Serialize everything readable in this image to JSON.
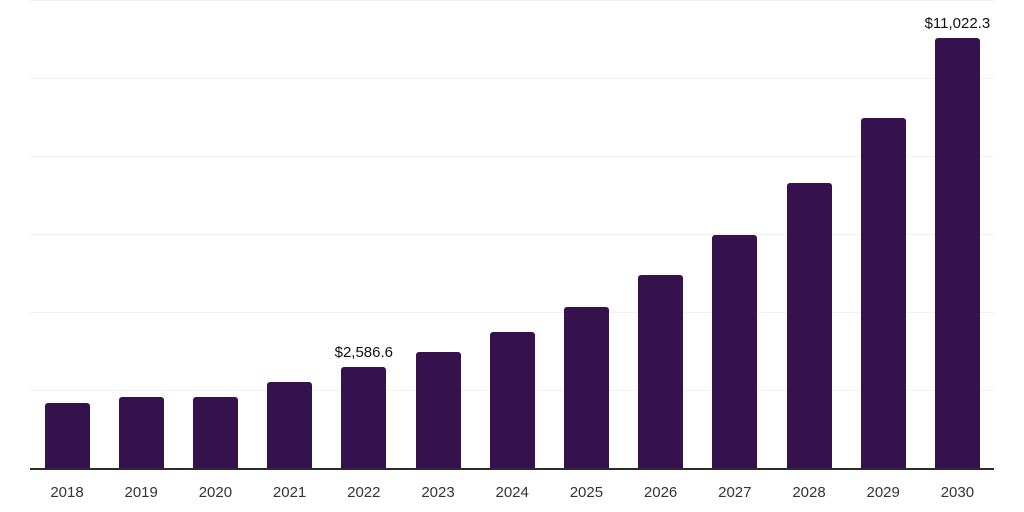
{
  "chart_data": {
    "type": "bar",
    "title": "",
    "xlabel": "",
    "ylabel": "",
    "categories": [
      "2018",
      "2019",
      "2020",
      "2021",
      "2022",
      "2023",
      "2024",
      "2025",
      "2026",
      "2027",
      "2028",
      "2029",
      "2030"
    ],
    "values": [
      1665,
      1820,
      1810,
      2205,
      2586.6,
      2975,
      3485,
      4130,
      4950,
      5975,
      7310,
      8975,
      11022.3
    ],
    "value_labels": [
      "",
      "",
      "",
      "",
      "$2,586.6",
      "",
      "",
      "",
      "",
      "",
      "",
      "",
      "$11,022.3"
    ],
    "ylim": [
      0,
      12000
    ],
    "gridline_interval": 2000,
    "grid": "horizontal",
    "legend": "none",
    "y_tick_labels_visible": false
  },
  "colors": {
    "bar": "#35114e",
    "axis_line": "#2b2b2b",
    "gridline": "#f1f1f1",
    "tick_label": "#333333",
    "data_label": "#111111",
    "background": "#ffffff"
  }
}
